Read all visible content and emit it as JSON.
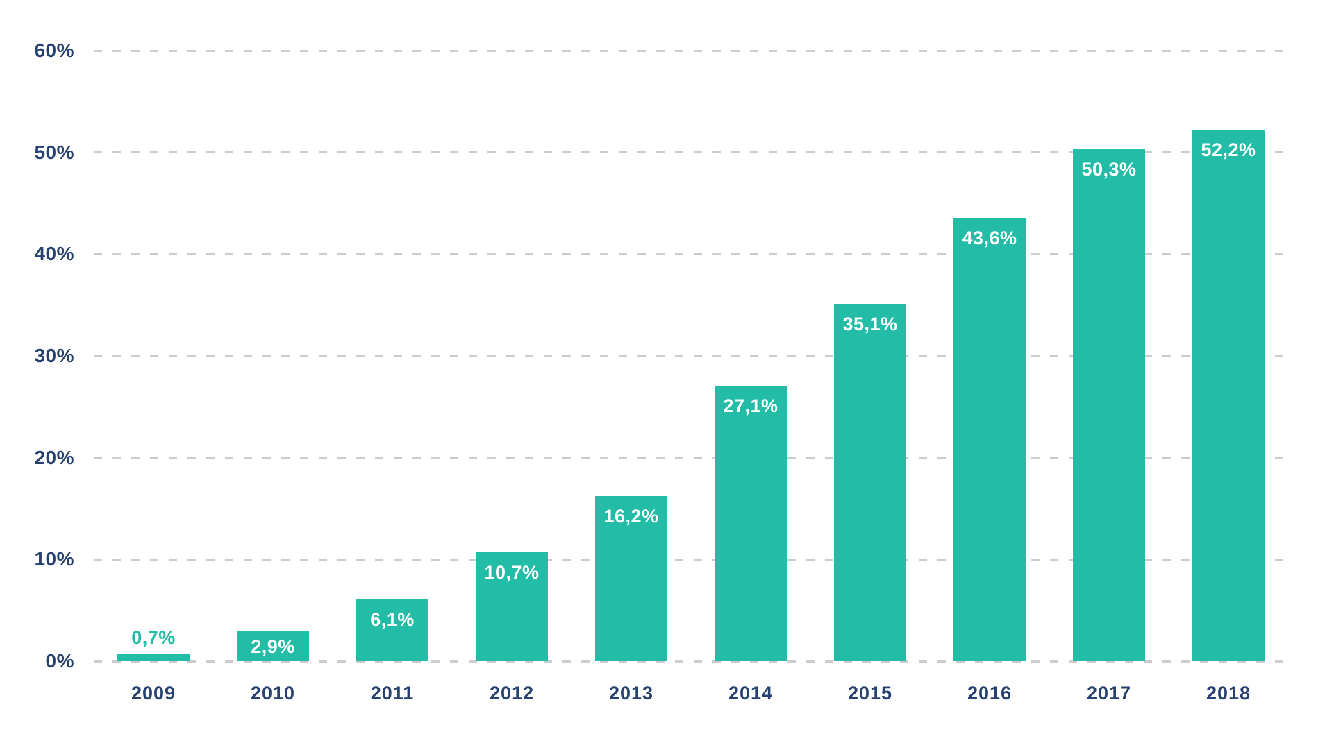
{
  "chart_data": {
    "type": "bar",
    "title": "",
    "xlabel": "",
    "ylabel": "",
    "categories": [
      "2009",
      "2010",
      "2011",
      "2012",
      "2013",
      "2014",
      "2015",
      "2016",
      "2017",
      "2018"
    ],
    "values": [
      0.7,
      2.9,
      6.1,
      10.7,
      16.2,
      27.1,
      35.1,
      43.6,
      50.3,
      52.2
    ],
    "value_labels": [
      "0,7%",
      "2,9%",
      "6,1%",
      "10,7%",
      "16,2%",
      "27,1%",
      "35,1%",
      "43,6%",
      "50,3%",
      "52,2%"
    ],
    "value_label_positions": [
      "above",
      "inside",
      "inside",
      "inside",
      "inside",
      "inside",
      "inside",
      "inside",
      "inside",
      "inside"
    ],
    "ylim": [
      0,
      60
    ],
    "yticks": [
      0,
      10,
      20,
      30,
      40,
      50,
      60
    ],
    "ytick_labels": [
      "0%",
      "10%",
      "20%",
      "30%",
      "40%",
      "50%",
      "60%"
    ],
    "grid": "horizontal-dashed",
    "legend": "none",
    "colors": {
      "bar": "#22bca7",
      "bar_label_inside": "#ffffff",
      "bar_label_above": "#22bca7",
      "axis_text": "#264070",
      "gridline": "#cdcdcd",
      "background": "#ffffff"
    }
  }
}
